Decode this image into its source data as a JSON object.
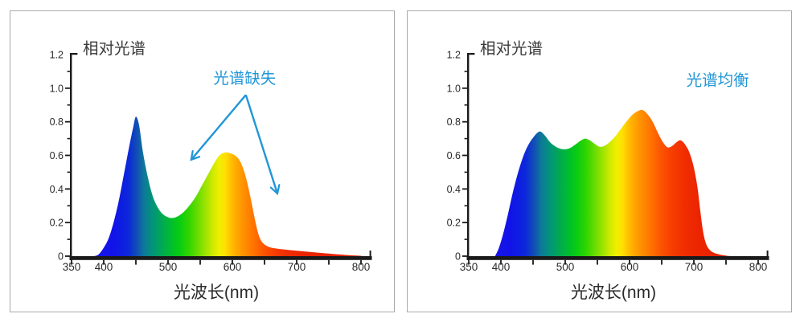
{
  "page": {
    "background": "#ffffff",
    "panel_background": "#ffffff",
    "panel_border_color": "#a9a9a9",
    "axis_color": "#1a1a1a",
    "title_color": "#3a3a3a",
    "tick_label_color": "#2a2a2a",
    "accent_blue": "#2196d8"
  },
  "spectrum_gradient": [
    {
      "wl": 380,
      "color": "#1b15e9"
    },
    {
      "wl": 415,
      "color": "#1113e8"
    },
    {
      "wl": 438,
      "color": "#0c27db"
    },
    {
      "wl": 452,
      "color": "#1150b4"
    },
    {
      "wl": 463,
      "color": "#0d7a98"
    },
    {
      "wl": 476,
      "color": "#03947a"
    },
    {
      "wl": 490,
      "color": "#00a855"
    },
    {
      "wl": 504,
      "color": "#00bc30"
    },
    {
      "wl": 518,
      "color": "#08cd12"
    },
    {
      "wl": 532,
      "color": "#30d400"
    },
    {
      "wl": 546,
      "color": "#67dc00"
    },
    {
      "wl": 558,
      "color": "#9ce300"
    },
    {
      "wl": 570,
      "color": "#cfea00"
    },
    {
      "wl": 580,
      "color": "#f1ee00"
    },
    {
      "wl": 589,
      "color": "#ffdf00"
    },
    {
      "wl": 597,
      "color": "#ffc300"
    },
    {
      "wl": 606,
      "color": "#ffaa00"
    },
    {
      "wl": 616,
      "color": "#ff9300"
    },
    {
      "wl": 626,
      "color": "#ff8100"
    },
    {
      "wl": 639,
      "color": "#ff6700"
    },
    {
      "wl": 653,
      "color": "#fb4e00"
    },
    {
      "wl": 669,
      "color": "#f63a00"
    },
    {
      "wl": 686,
      "color": "#f02d00"
    },
    {
      "wl": 706,
      "color": "#ec2500"
    },
    {
      "wl": 745,
      "color": "#e92100"
    },
    {
      "wl": 800,
      "color": "#e81f00"
    }
  ],
  "chart_data": [
    {
      "type": "area",
      "title": "相对光谱",
      "xlabel": "光波长(nm)",
      "ylabel": "",
      "annotation": {
        "text": "光谱缺失",
        "color": "#2196d8",
        "wl": 619,
        "val": 1.07
      },
      "xlim": [
        350,
        800
      ],
      "ylim": [
        0,
        1.2
      ],
      "grid": false,
      "legend": "none",
      "x_ticks": [
        350,
        400,
        450,
        500,
        550,
        600,
        650,
        700,
        750,
        800
      ],
      "x_tick_labels": [
        "350",
        "400",
        "",
        "500",
        "",
        "600",
        "",
        "700",
        "",
        "800"
      ],
      "y_ticks": [
        0,
        0.2,
        0.4,
        0.6,
        0.8,
        1.0,
        1.2
      ],
      "y_tick_labels": [
        "0",
        "0.2",
        "0.4",
        "0.6",
        "0.8",
        "1.0",
        "1.2"
      ],
      "y_minor_ticks": [
        0.1,
        0.3,
        0.5,
        0.7,
        0.9,
        1.1
      ],
      "points": [
        [
          385,
          0
        ],
        [
          392,
          0.01
        ],
        [
          400,
          0.05
        ],
        [
          408,
          0.11
        ],
        [
          416,
          0.21
        ],
        [
          424,
          0.34
        ],
        [
          432,
          0.5
        ],
        [
          440,
          0.66
        ],
        [
          446,
          0.77
        ],
        [
          450,
          0.83
        ],
        [
          455,
          0.78
        ],
        [
          461,
          0.62
        ],
        [
          468,
          0.48
        ],
        [
          476,
          0.36
        ],
        [
          484,
          0.29
        ],
        [
          492,
          0.25
        ],
        [
          500,
          0.232
        ],
        [
          506,
          0.227
        ],
        [
          514,
          0.235
        ],
        [
          524,
          0.262
        ],
        [
          534,
          0.305
        ],
        [
          544,
          0.36
        ],
        [
          554,
          0.43
        ],
        [
          564,
          0.5
        ],
        [
          572,
          0.556
        ],
        [
          580,
          0.6
        ],
        [
          588,
          0.617
        ],
        [
          596,
          0.613
        ],
        [
          604,
          0.6
        ],
        [
          611,
          0.572
        ],
        [
          617,
          0.52
        ],
        [
          623,
          0.44
        ],
        [
          629,
          0.335
        ],
        [
          635,
          0.22
        ],
        [
          641,
          0.125
        ],
        [
          647,
          0.08
        ],
        [
          655,
          0.058
        ],
        [
          665,
          0.047
        ],
        [
          680,
          0.04
        ],
        [
          700,
          0.032
        ],
        [
          720,
          0.025
        ],
        [
          745,
          0.017
        ],
        [
          770,
          0.009
        ],
        [
          790,
          0.004
        ],
        [
          800,
          0.002
        ]
      ],
      "arrows": [
        {
          "from": [
            621,
            0.96
          ],
          "to": [
            536,
            0.574
          ]
        },
        {
          "from": [
            621,
            0.96
          ],
          "to": [
            670,
            0.373
          ]
        }
      ]
    },
    {
      "type": "area",
      "title": "相对光谱",
      "xlabel": "光波长(nm)",
      "ylabel": "",
      "annotation": {
        "text": "光谱均衡",
        "color": "#2196d8",
        "wl": 737,
        "val": 1.06
      },
      "xlim": [
        350,
        800
      ],
      "ylim": [
        0,
        1.2
      ],
      "grid": false,
      "legend": "none",
      "x_ticks": [
        350,
        400,
        450,
        500,
        550,
        600,
        650,
        700,
        750,
        800
      ],
      "x_tick_labels": [
        "350",
        "400",
        "",
        "500",
        "",
        "600",
        "",
        "700",
        "",
        "800"
      ],
      "y_ticks": [
        0,
        0.2,
        0.4,
        0.6,
        0.8,
        1.0,
        1.2
      ],
      "y_tick_labels": [
        "0",
        "0.2",
        "0.4",
        "0.6",
        "0.8",
        "1.0",
        "1.2"
      ],
      "y_minor_ticks": [
        0.1,
        0.3,
        0.5,
        0.7,
        0.9,
        1.1
      ],
      "points": [
        [
          391,
          0
        ],
        [
          397,
          0.05
        ],
        [
          404,
          0.14
        ],
        [
          411,
          0.25
        ],
        [
          418,
          0.37
        ],
        [
          425,
          0.475
        ],
        [
          433,
          0.575
        ],
        [
          441,
          0.65
        ],
        [
          450,
          0.705
        ],
        [
          460,
          0.742
        ],
        [
          468,
          0.72
        ],
        [
          476,
          0.68
        ],
        [
          484,
          0.655
        ],
        [
          492,
          0.64
        ],
        [
          500,
          0.636
        ],
        [
          508,
          0.645
        ],
        [
          516,
          0.665
        ],
        [
          524,
          0.688
        ],
        [
          531,
          0.7
        ],
        [
          538,
          0.69
        ],
        [
          546,
          0.668
        ],
        [
          553,
          0.652
        ],
        [
          560,
          0.655
        ],
        [
          568,
          0.675
        ],
        [
          577,
          0.71
        ],
        [
          586,
          0.755
        ],
        [
          595,
          0.8
        ],
        [
          604,
          0.84
        ],
        [
          612,
          0.862
        ],
        [
          620,
          0.87
        ],
        [
          628,
          0.845
        ],
        [
          636,
          0.8
        ],
        [
          644,
          0.735
        ],
        [
          652,
          0.678
        ],
        [
          659,
          0.648
        ],
        [
          666,
          0.655
        ],
        [
          673,
          0.678
        ],
        [
          679,
          0.69
        ],
        [
          685,
          0.672
        ],
        [
          691,
          0.635
        ],
        [
          696,
          0.585
        ],
        [
          701,
          0.51
        ],
        [
          706,
          0.4
        ],
        [
          710,
          0.27
        ],
        [
          714,
          0.155
        ],
        [
          718,
          0.085
        ],
        [
          723,
          0.045
        ],
        [
          730,
          0.022
        ],
        [
          740,
          0.01
        ],
        [
          750,
          0.003
        ],
        [
          756,
          0
        ]
      ],
      "arrows": []
    }
  ]
}
